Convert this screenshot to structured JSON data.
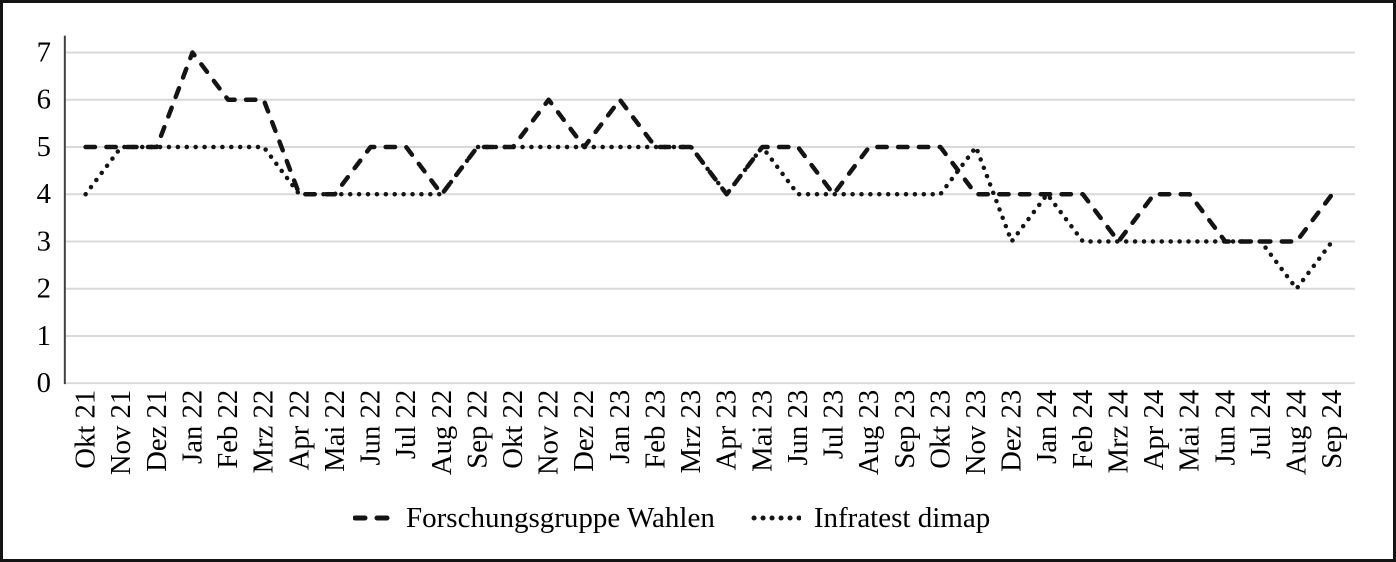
{
  "figure": {
    "background": "#ffffff",
    "border_color": "#141414",
    "text_color": "#000000",
    "gridline_color": "#d9d9d9",
    "axis_line_color": "#404040",
    "line_color": "#141414"
  },
  "chart_data": {
    "type": "line",
    "title": "",
    "xlabel": "",
    "ylabel": "",
    "ylim": [
      0,
      7
    ],
    "yticks": [
      0,
      1,
      2,
      3,
      4,
      5,
      6,
      7
    ],
    "grid": "horizontal",
    "legend_position": "bottom",
    "categories": [
      "Okt 21",
      "Nov 21",
      "Dez 21",
      "Jan 22",
      "Feb 22",
      "Mrz 22",
      "Apr 22",
      "Mai 22",
      "Jun 22",
      "Jul 22",
      "Aug 22",
      "Sep 22",
      "Okt 22",
      "Nov 22",
      "Dez 22",
      "Jan 23",
      "Feb 23",
      "Mrz 23",
      "Apr 23",
      "Mai 23",
      "Jun 23",
      "Jul 23",
      "Aug 23",
      "Sep 23",
      "Okt 23",
      "Nov 23",
      "Dez 23",
      "Jan 24",
      "Feb 24",
      "Mrz 24",
      "Apr 24",
      "Mai 24",
      "Jun 24",
      "Jul 24",
      "Aug 24",
      "Sep 24"
    ],
    "series": [
      {
        "name": "Forschungsgruppe Wahlen",
        "style": "dashed",
        "color": "#141414",
        "values": [
          5,
          5,
          5,
          7,
          6,
          6,
          4,
          4,
          5,
          5,
          4,
          5,
          5,
          6,
          5,
          6,
          5,
          5,
          4,
          5,
          5,
          4,
          5,
          5,
          5,
          4,
          4,
          4,
          4,
          3,
          4,
          4,
          3,
          3,
          3,
          4
        ]
      },
      {
        "name": "Infratest dimap",
        "style": "dotted",
        "color": "#141414",
        "values": [
          4,
          5,
          5,
          5,
          5,
          5,
          4,
          4,
          4,
          4,
          4,
          5,
          5,
          5,
          5,
          5,
          5,
          5,
          4,
          5,
          4,
          4,
          4,
          4,
          4,
          5,
          3,
          4,
          3,
          3,
          3,
          3,
          3,
          3,
          2,
          3
        ]
      }
    ]
  }
}
